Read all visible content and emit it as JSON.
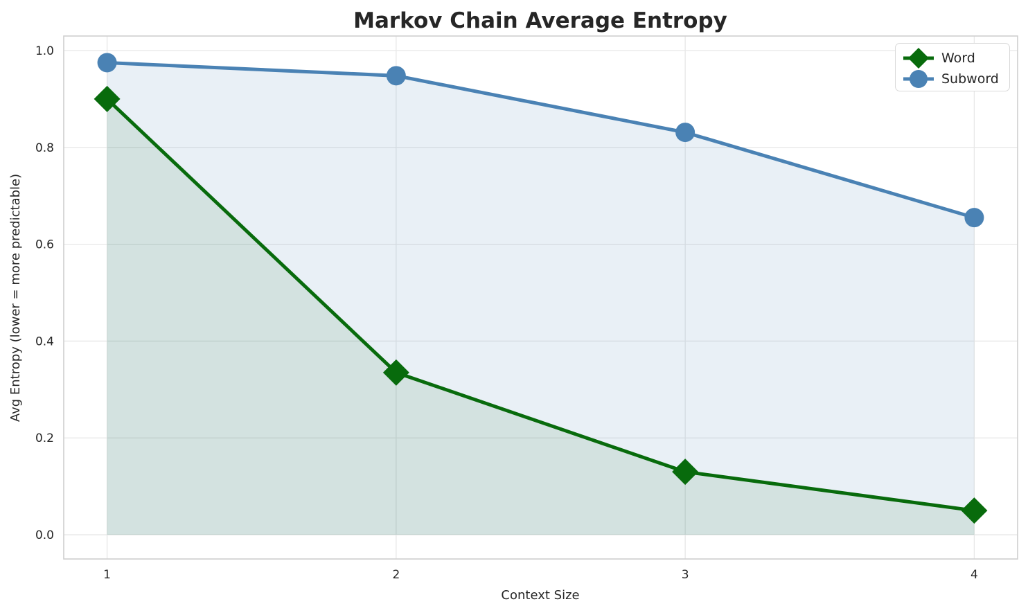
{
  "chart_data": {
    "type": "line",
    "title": "Markov Chain Average Entropy",
    "xlabel": "Context Size",
    "ylabel": "Avg Entropy (lower = more predictable)",
    "x": [
      1,
      2,
      3,
      4
    ],
    "series": [
      {
        "name": "Word",
        "values": [
          0.9,
          0.335,
          0.13,
          0.05
        ],
        "color": "#086b0c",
        "marker": "diamond",
        "fill_to_zero": true,
        "fill_opacity": 0.1
      },
      {
        "name": "Subword",
        "values": [
          0.975,
          0.948,
          0.831,
          0.655
        ],
        "color": "#4a82b4",
        "marker": "circle",
        "fill_to_zero": true,
        "fill_opacity": 0.12
      }
    ],
    "xticks": [
      1,
      2,
      3,
      4
    ],
    "xtick_labels": [
      "1",
      "2",
      "3",
      "4"
    ],
    "yticks": [
      0.0,
      0.2,
      0.4,
      0.6,
      0.8,
      1.0
    ],
    "ytick_labels": [
      "0.0",
      "0.2",
      "0.4",
      "0.6",
      "0.8",
      "1.0"
    ],
    "xlim": [
      0.85,
      4.15
    ],
    "ylim": [
      -0.05,
      1.03
    ],
    "grid": true,
    "grid_color": "#e7e7e7",
    "spine_color": "#cfcfcf",
    "text_color": "#262626",
    "legend_position": "upper right",
    "line_width": 5
  }
}
